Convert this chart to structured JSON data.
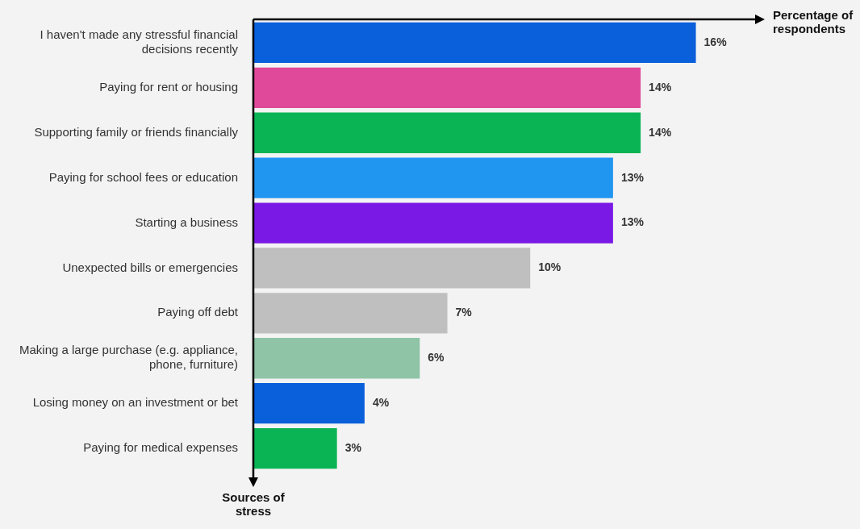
{
  "chart_data": {
    "type": "bar",
    "orientation": "horizontal",
    "annotations": [
      "Percentage of respondents"
    ],
    "ylabel": "Sources of stress",
    "categories": [
      "I haven't made any stressful financial decisions recently",
      "Paying for rent or housing",
      "Supporting family or friends financially",
      "Paying for school fees or education",
      "Starting a business",
      "Unexpected bills or emergencies",
      "Paying off debt",
      "Making a large purchase (e.g. appliance, phone, furniture)",
      "Losing money on an investment or bet",
      "Paying for medical expenses"
    ],
    "values": [
      16,
      14,
      14,
      13,
      13,
      10,
      7,
      6,
      4,
      3
    ],
    "colors": [
      "#0a5fdb",
      "#e0489a",
      "#0ab454",
      "#2196f0",
      "#7a18e6",
      "#c0bfc0",
      "#c0bfc0",
      "#8fc4a6",
      "#0a5fdb",
      "#0ab454"
    ],
    "value_labels": [
      "16%",
      "14%",
      "14%",
      "13%",
      "13%",
      "10%",
      "7%",
      "6%",
      "4%",
      "3%"
    ],
    "legend": false,
    "grid": false
  }
}
